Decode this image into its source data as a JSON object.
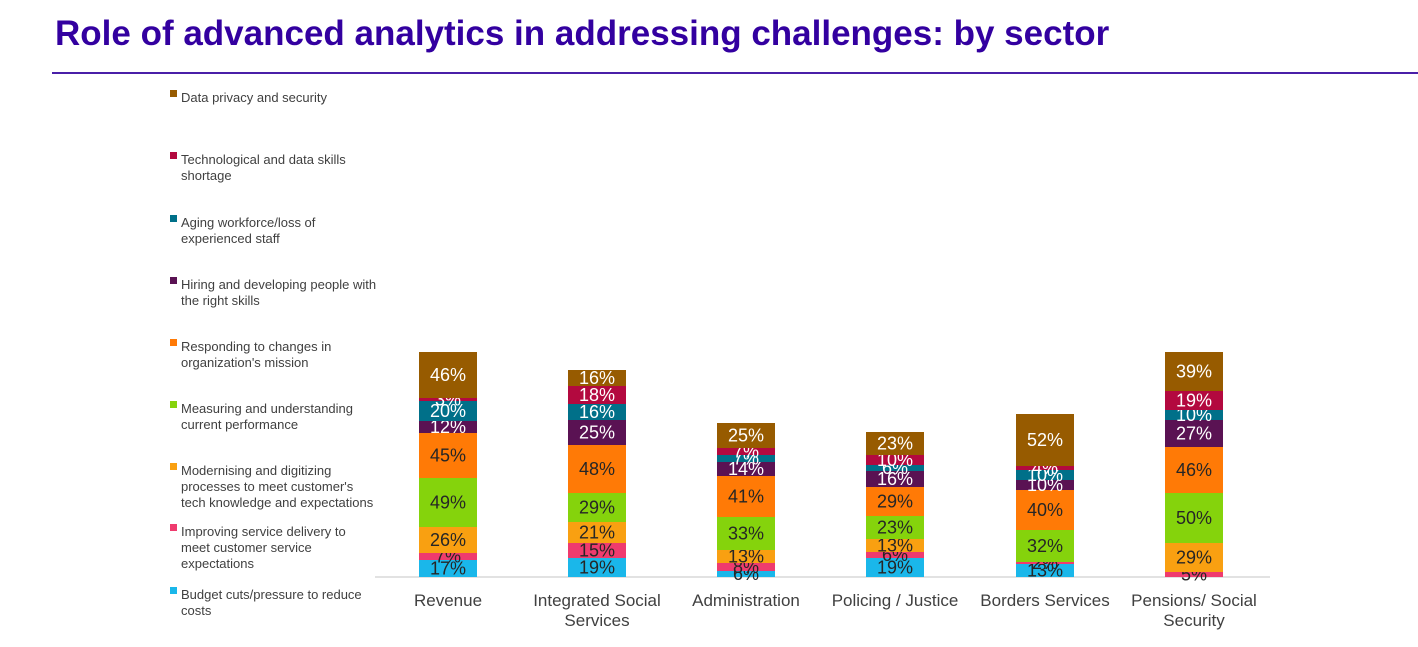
{
  "page": {
    "title": "Role of advanced analytics in addressing challenges: by sector"
  },
  "chart_data": {
    "type": "bar",
    "stacked": true,
    "title": "",
    "xlabel": "",
    "ylabel": "",
    "legend_position": "left",
    "grid": false,
    "categories": [
      "Revenue",
      "Integrated Social Services",
      "Administration",
      "Policing / Justice",
      "Borders Services",
      "Pensions/ Social Security"
    ],
    "series": [
      {
        "name": "Budget cuts/pressure to reduce costs",
        "color": "#1ab7ea",
        "text_color": "#262626",
        "values": [
          17,
          19,
          6,
          19,
          13,
          0
        ]
      },
      {
        "name": "Improving service delivery to meet customer service expectations",
        "color": "#ef3b6e",
        "text_color": "#262626",
        "values": [
          7,
          15,
          8,
          6,
          2,
          5
        ]
      },
      {
        "name": "Modernising and digitizing processes to meet customer's tech knowledge and expectations",
        "color": "#f9a011",
        "text_color": "#262626",
        "values": [
          26,
          21,
          13,
          13,
          0,
          29
        ]
      },
      {
        "name": "Measuring and understanding current performance",
        "color": "#85d30c",
        "text_color": "#262626",
        "values": [
          49,
          29,
          33,
          23,
          32,
          50
        ]
      },
      {
        "name": "Responding to changes in organization's mission",
        "color": "#ff7a06",
        "text_color": "#262626",
        "values": [
          45,
          48,
          41,
          29,
          40,
          46
        ]
      },
      {
        "name": "Hiring and developing people with the right skills",
        "color": "#5a1253",
        "text_color": "#ffffff",
        "values": [
          12,
          25,
          14,
          16,
          10,
          27
        ]
      },
      {
        "name": "Aging workforce/loss of experienced staff",
        "color": "#007089",
        "text_color": "#ffffff",
        "values": [
          20,
          16,
          7,
          6,
          10,
          10
        ]
      },
      {
        "name": "Technological and data skills shortage",
        "color": "#b3093f",
        "text_color": "#ffffff",
        "values": [
          3,
          18,
          7,
          10,
          4,
          19
        ]
      },
      {
        "name": "Data privacy and security",
        "color": "#975b00",
        "text_color": "#ffffff",
        "values": [
          46,
          16,
          25,
          23,
          52,
          39
        ]
      }
    ]
  }
}
